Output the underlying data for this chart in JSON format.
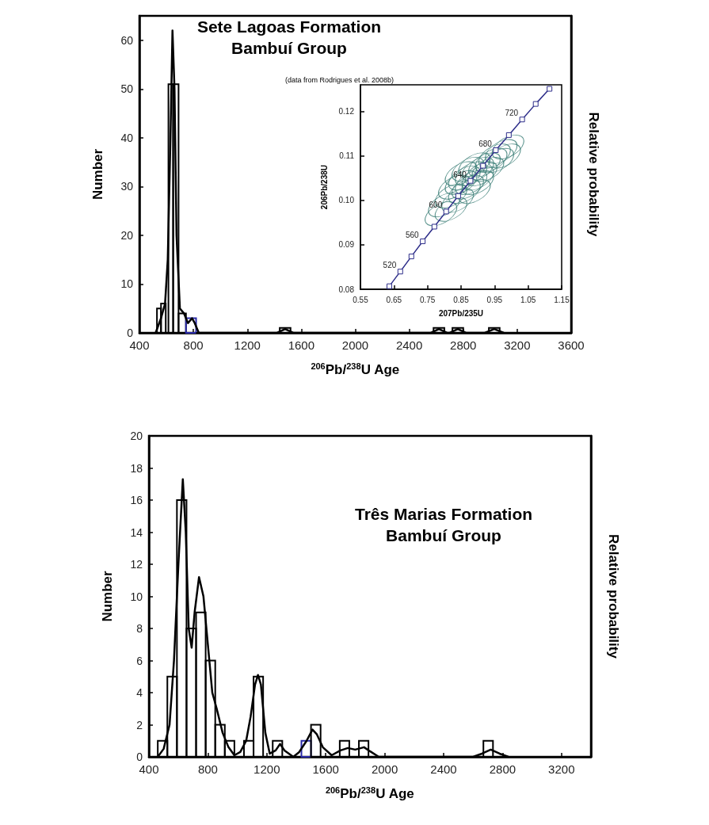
{
  "chart_data": [
    {
      "type": "histogram",
      "title": "Sete Lagoas Formation",
      "subtitle": "Bambuí Group",
      "annotations": [
        "(data from Rodrigues et al. 2008b)"
      ],
      "xlabel": "$^{206}$Pb/$^{238}$U Age",
      "ylabel": "Number",
      "y2label": "Relative probability",
      "bins": [
        530,
        560,
        595,
        615,
        650,
        690,
        745,
        820,
        1440,
        1520,
        2580,
        2660,
        2720,
        2800,
        2990,
        3070
      ],
      "values": [
        5,
        6,
        0,
        51,
        51,
        4,
        3,
        0,
        1,
        0,
        1,
        0,
        1,
        0,
        1
      ],
      "colors": [
        "#000000",
        "#000000",
        "#000000",
        "#000000",
        "#000000",
        "#000000",
        "#2a2aa8",
        "#000000",
        "#000000",
        "#000000",
        "#000000",
        "#000000",
        "#000000",
        "#000000",
        "#000000"
      ],
      "series": [
        {
          "type": "line",
          "color": "#000000",
          "marker": "none",
          "x": [
            520,
            560,
            590,
            610,
            630,
            645,
            660,
            675,
            700,
            730,
            760,
            790,
            810,
            840,
            1420,
            1480,
            1540,
            2560,
            2620,
            2680,
            2700,
            2760,
            2820,
            2960,
            3030,
            3100
          ],
          "values": [
            0,
            3,
            6,
            15,
            40,
            62,
            50,
            20,
            5,
            4,
            2,
            3,
            2,
            0,
            0,
            0.8,
            0,
            0,
            0.8,
            0,
            0,
            0.8,
            0,
            0,
            0.8,
            0
          ]
        }
      ],
      "xlim": [
        400,
        3600
      ],
      "xticks": [
        400,
        800,
        1200,
        1600,
        2000,
        2400,
        2800,
        3200,
        3600
      ],
      "ylim": [
        0,
        65
      ],
      "yticks": [
        0,
        10,
        20,
        30,
        40,
        50,
        60
      ]
    },
    {
      "type": "line",
      "xlabel": "207Pb/235U",
      "ylabel": "206Pb/238U",
      "annotations": [
        {
          "text": "520",
          "x": 0.6688,
          "y": 0.084
        },
        {
          "text": "560",
          "x": 0.7358,
          "y": 0.0908
        },
        {
          "text": "600",
          "x": 0.8056,
          "y": 0.0975
        },
        {
          "text": "640",
          "x": 0.8782,
          "y": 0.1044
        },
        {
          "text": "680",
          "x": 0.9536,
          "y": 0.1113
        },
        {
          "text": "720",
          "x": 1.0322,
          "y": 0.1182
        }
      ],
      "series": [
        {
          "type": "scatter",
          "color": "#3a7d75",
          "x": [
            0.8,
            0.82,
            0.83,
            0.84,
            0.85,
            0.85,
            0.86,
            0.86,
            0.87,
            0.87,
            0.88,
            0.88,
            0.89,
            0.89,
            0.9,
            0.9,
            0.91,
            0.92,
            0.93,
            0.94,
            0.95,
            0.96,
            0.97,
            0.99,
            0.79,
            0.82,
            0.98,
            0.9
          ],
          "values": [
            0.099,
            0.101,
            0.103,
            0.1,
            0.104,
            0.106,
            0.102,
            0.105,
            0.103,
            0.107,
            0.104,
            0.106,
            0.102,
            0.108,
            0.105,
            0.107,
            0.106,
            0.108,
            0.107,
            0.109,
            0.11,
            0.109,
            0.111,
            0.112,
            0.097,
            0.098,
            0.11,
            0.104
          ]
        },
        {
          "color": "#2e2e8a",
          "marker": "square",
          "x": [
            0.6362,
            0.6688,
            0.7019,
            0.7358,
            0.7704,
            0.8056,
            0.8415,
            0.8782,
            0.9155,
            0.9536,
            0.9925,
            1.0322,
            1.0726,
            1.1138
          ],
          "values": [
            0.0807,
            0.084,
            0.0874,
            0.0908,
            0.0941,
            0.0975,
            0.101,
            0.1044,
            0.1078,
            0.1113,
            0.1147,
            0.1182,
            0.1217,
            0.1251
          ]
        }
      ],
      "xlim": [
        0.55,
        1.15
      ],
      "xticks": [
        0.55,
        0.65,
        0.75,
        0.85,
        0.95,
        1.05,
        1.15
      ],
      "ylim": [
        0.08,
        0.126
      ],
      "yticks": [
        {
          "value": 0.08,
          "label": "0.08"
        },
        {
          "value": 0.09,
          "label": "0.09"
        },
        {
          "value": 0.1,
          "label": "0.10"
        },
        {
          "value": 0.11,
          "label": "0.11"
        },
        {
          "value": 0.12,
          "label": "0.12"
        }
      ]
    },
    {
      "type": "histogram",
      "title": "Três Marias Formation",
      "subtitle": "Bambuí Group",
      "xlabel": "$^{206}$Pb/$^{238}$U Age",
      "ylabel": "Number",
      "y2label": "Relative probability",
      "bins": [
        460,
        525,
        590,
        655,
        720,
        785,
        850,
        915,
        980,
        1045,
        1110,
        1175,
        1240,
        1305,
        1370,
        1435,
        1500,
        1565,
        1630,
        1695,
        1760,
        1825,
        1890,
        1955,
        2020,
        2085,
        2150,
        2215,
        2280,
        2345,
        2410,
        2475,
        2540,
        2605,
        2670,
        2735
      ],
      "values": [
        1,
        5,
        16,
        8,
        9,
        6,
        2,
        1,
        0,
        1,
        5,
        0,
        1,
        0,
        0,
        1,
        2,
        0,
        0,
        1,
        0,
        1,
        0,
        0,
        0,
        0,
        0,
        0,
        0,
        0,
        0,
        0,
        0,
        0,
        1
      ],
      "colors": [
        "#000000",
        "#000000",
        "#000000",
        "#000000",
        "#000000",
        "#000000",
        "#000000",
        "#000000",
        "#000000",
        "#000000",
        "#000000",
        "#000000",
        "#000000",
        "#000000",
        "#000000",
        "#2a2aa8",
        "#000000",
        "#000000",
        "#000000",
        "#000000",
        "#000000",
        "#000000",
        "#000000",
        "#000000",
        "#000000",
        "#000000",
        "#000000",
        "#000000",
        "#000000",
        "#000000",
        "#000000",
        "#000000",
        "#000000",
        "#000000",
        "#000000"
      ],
      "series": [
        {
          "type": "line",
          "color": "#000000",
          "marker": "none",
          "x": [
            460,
            500,
            540,
            570,
            600,
            630,
            650,
            670,
            690,
            710,
            740,
            770,
            800,
            830,
            860,
            900,
            940,
            980,
            1020,
            1060,
            1090,
            1120,
            1140,
            1160,
            1190,
            1220,
            1260,
            1290,
            1320,
            1380,
            1420,
            1470,
            1510,
            1540,
            1580,
            1640,
            1700,
            1750,
            1800,
            1860,
            1900,
            1960,
            2600,
            2660,
            2720,
            2780,
            2840
          ],
          "values": [
            0,
            0.5,
            2,
            6,
            12,
            17.3,
            14,
            8,
            6.8,
            9,
            11.2,
            10,
            7,
            4,
            3,
            1.5,
            0.6,
            0.1,
            0.3,
            1,
            2.5,
            4.5,
            5.1,
            4.5,
            1.5,
            0.2,
            0.4,
            0.8,
            0.4,
            0,
            0.3,
            1,
            1.7,
            1.4,
            0.6,
            0.1,
            0.4,
            0.55,
            0.45,
            0.6,
            0.35,
            0,
            0,
            0.2,
            0.45,
            0.2,
            0
          ]
        }
      ],
      "xlim": [
        400,
        3400
      ],
      "xticks": [
        400,
        800,
        1200,
        1600,
        2000,
        2400,
        2800,
        3200
      ],
      "ylim": [
        0,
        20
      ],
      "yticks": [
        0,
        2,
        4,
        6,
        8,
        10,
        12,
        14,
        16,
        18,
        20
      ]
    }
  ]
}
